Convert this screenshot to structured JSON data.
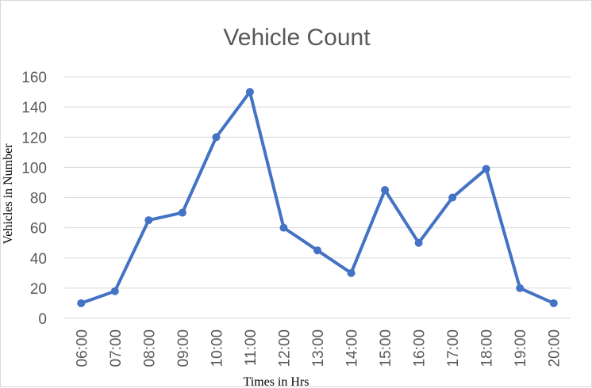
{
  "chart_data": {
    "type": "line",
    "title": "Vehicle Count",
    "xlabel": "Times in Hrs",
    "ylabel": "Vehicles in Number",
    "categories": [
      "06:00",
      "07:00",
      "08:00",
      "09:00",
      "10:00",
      "11:00",
      "12:00",
      "13:00",
      "14:00",
      "15:00",
      "16:00",
      "17:00",
      "18:00",
      "19:00",
      "20:00"
    ],
    "series": [
      {
        "values": [
          10,
          18,
          65,
          70,
          120,
          150,
          60,
          45,
          30,
          85,
          50,
          80,
          99,
          20,
          10
        ]
      }
    ],
    "ylim": [
      0,
      160
    ],
    "yticks": [
      0,
      20,
      40,
      60,
      80,
      100,
      120,
      140,
      160
    ],
    "grid": true,
    "legend": "none",
    "colors": {
      "line": "#4472c4",
      "grid": "#d9d9d9",
      "text": "#595959"
    }
  }
}
